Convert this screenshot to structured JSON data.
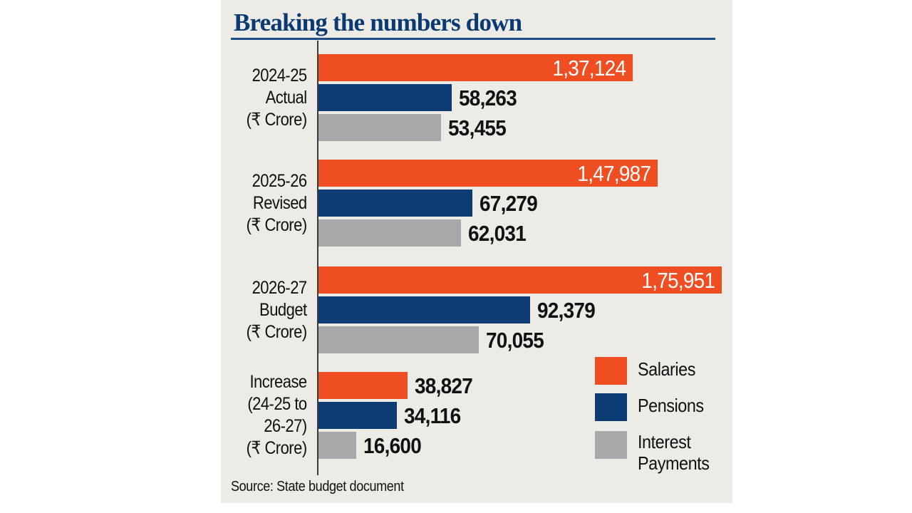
{
  "colors": {
    "salaries": "#ef4e23",
    "pensions": "#0d3b74",
    "interest": "#a7a8aa",
    "title": "#0b3a72",
    "background": "#ecebe6"
  },
  "chart_data": {
    "type": "bar",
    "orientation": "horizontal",
    "title": "Breaking the numbers down",
    "source": "Source: State budget document",
    "xlabel": "",
    "ylabel": "",
    "unit": "₹ Crore",
    "xlim": [
      0,
      175951
    ],
    "grid": false,
    "legend_position": "bottom-right",
    "categories": [
      {
        "lines": [
          "2024-25",
          "Actual",
          "(₹ Crore)"
        ]
      },
      {
        "lines": [
          "2025-26",
          "Revised",
          "(₹ Crore)"
        ]
      },
      {
        "lines": [
          "2026-27",
          "Budget",
          "(₹ Crore)"
        ]
      },
      {
        "lines": [
          "Increase",
          "(24-25 to",
          "26-27)",
          "(₹ Crore)"
        ]
      }
    ],
    "series": [
      {
        "name": "Salaries",
        "key": "salaries",
        "values": [
          137124,
          147987,
          175951,
          38827
        ],
        "labels": [
          "1,37,124",
          "1,47,987",
          "1,75,951",
          "38,827"
        ]
      },
      {
        "name": "Pensions",
        "key": "pensions",
        "values": [
          58263,
          67279,
          92379,
          34116
        ],
        "labels": [
          "58,263",
          "67,279",
          "92,379",
          "34,116"
        ]
      },
      {
        "name": "Interest Payments",
        "key": "interest",
        "values": [
          53455,
          62031,
          70055,
          16600
        ],
        "labels": [
          "53,455",
          "62,031",
          "70,055",
          "16,600"
        ]
      }
    ],
    "legend": [
      {
        "key": "salaries",
        "lines": [
          "Salaries"
        ]
      },
      {
        "key": "pensions",
        "lines": [
          "Pensions"
        ]
      },
      {
        "key": "interest",
        "lines": [
          "Interest",
          "Payments"
        ]
      }
    ]
  }
}
